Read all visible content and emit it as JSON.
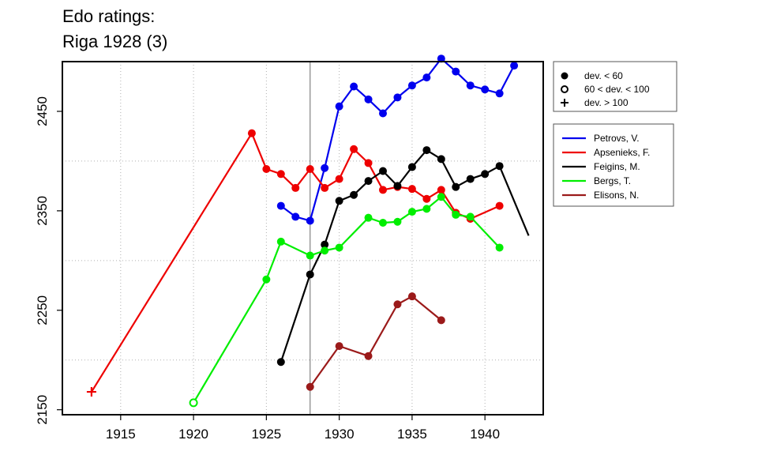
{
  "chart_data": {
    "type": "line",
    "title_lines": [
      "Edo ratings:",
      "Riga 1928 (3)"
    ],
    "xlabel": "",
    "ylabel": "",
    "xlim": [
      1911,
      1944
    ],
    "ylim": [
      2145,
      2500
    ],
    "x_ticks": [
      1915,
      1920,
      1925,
      1930,
      1935,
      1940
    ],
    "y_ticks": [
      2150,
      2250,
      2350,
      2450
    ],
    "grid": true,
    "grid_x": [
      1915,
      1920,
      1925,
      1930,
      1935,
      1940
    ],
    "grid_y": [
      2200,
      2300,
      2400,
      2500
    ],
    "reference_year": 1928,
    "marker_legend": [
      {
        "symbol": "filled-circle",
        "label": "dev. < 60"
      },
      {
        "symbol": "open-circle",
        "label": "60 < dev. < 100"
      },
      {
        "symbol": "plus",
        "label": "dev. > 100"
      }
    ],
    "series": [
      {
        "name": "Petrovs, V.",
        "color": "#0000ee",
        "points": [
          {
            "x": 1926,
            "y": 2355,
            "m": "filled-circle"
          },
          {
            "x": 1927,
            "y": 2344,
            "m": "filled-circle"
          },
          {
            "x": 1928,
            "y": 2340,
            "m": "filled-circle"
          },
          {
            "x": 1929,
            "y": 2393,
            "m": "filled-circle"
          },
          {
            "x": 1930,
            "y": 2455,
            "m": "filled-circle"
          },
          {
            "x": 1931,
            "y": 2475,
            "m": "filled-circle"
          },
          {
            "x": 1932,
            "y": 2462,
            "m": "filled-circle"
          },
          {
            "x": 1933,
            "y": 2448,
            "m": "filled-circle"
          },
          {
            "x": 1934,
            "y": 2464,
            "m": "filled-circle"
          },
          {
            "x": 1935,
            "y": 2476,
            "m": "filled-circle"
          },
          {
            "x": 1936,
            "y": 2484,
            "m": "filled-circle"
          },
          {
            "x": 1937,
            "y": 2503,
            "m": "filled-circle"
          },
          {
            "x": 1938,
            "y": 2490,
            "m": "filled-circle"
          },
          {
            "x": 1939,
            "y": 2476,
            "m": "filled-circle"
          },
          {
            "x": 1940,
            "y": 2472,
            "m": "filled-circle"
          },
          {
            "x": 1941,
            "y": 2468,
            "m": "filled-circle"
          },
          {
            "x": 1942,
            "y": 2496,
            "m": "filled-circle"
          }
        ]
      },
      {
        "name": "Apsenieks, F.",
        "color": "#ee0000",
        "points": [
          {
            "x": 1913,
            "y": 2168,
            "m": "plus"
          },
          {
            "x": 1924,
            "y": 2428,
            "m": "filled-circle"
          },
          {
            "x": 1925,
            "y": 2392,
            "m": "filled-circle"
          },
          {
            "x": 1926,
            "y": 2387,
            "m": "filled-circle"
          },
          {
            "x": 1927,
            "y": 2373,
            "m": "filled-circle"
          },
          {
            "x": 1928,
            "y": 2392,
            "m": "filled-circle"
          },
          {
            "x": 1929,
            "y": 2373,
            "m": "filled-circle"
          },
          {
            "x": 1930,
            "y": 2382,
            "m": "filled-circle"
          },
          {
            "x": 1931,
            "y": 2412,
            "m": "filled-circle"
          },
          {
            "x": 1932,
            "y": 2398,
            "m": "filled-circle"
          },
          {
            "x": 1933,
            "y": 2371,
            "m": "filled-circle"
          },
          {
            "x": 1934,
            "y": 2374,
            "m": "filled-circle"
          },
          {
            "x": 1935,
            "y": 2372,
            "m": "filled-circle"
          },
          {
            "x": 1936,
            "y": 2362,
            "m": "filled-circle"
          },
          {
            "x": 1937,
            "y": 2371,
            "m": "filled-circle"
          },
          {
            "x": 1938,
            "y": 2348,
            "m": "filled-circle"
          },
          {
            "x": 1939,
            "y": 2342,
            "m": "filled-circle"
          },
          {
            "x": 1941,
            "y": 2355,
            "m": "filled-circle"
          }
        ]
      },
      {
        "name": "Feigins, M.",
        "color": "#000000",
        "points": [
          {
            "x": 1926,
            "y": 2198,
            "m": "filled-circle"
          },
          {
            "x": 1928,
            "y": 2286,
            "m": "filled-circle"
          },
          {
            "x": 1929,
            "y": 2316,
            "m": "filled-circle"
          },
          {
            "x": 1930,
            "y": 2360,
            "m": "filled-circle"
          },
          {
            "x": 1931,
            "y": 2366,
            "m": "filled-circle"
          },
          {
            "x": 1932,
            "y": 2380,
            "m": "filled-circle"
          },
          {
            "x": 1933,
            "y": 2390,
            "m": "filled-circle"
          },
          {
            "x": 1934,
            "y": 2375,
            "m": "filled-circle"
          },
          {
            "x": 1935,
            "y": 2394,
            "m": "filled-circle"
          },
          {
            "x": 1936,
            "y": 2411,
            "m": "filled-circle"
          },
          {
            "x": 1937,
            "y": 2402,
            "m": "filled-circle"
          },
          {
            "x": 1938,
            "y": 2374,
            "m": "filled-circle"
          },
          {
            "x": 1939,
            "y": 2382,
            "m": "filled-circle"
          },
          {
            "x": 1940,
            "y": 2387,
            "m": "filled-circle"
          },
          {
            "x": 1941,
            "y": 2395,
            "m": "filled-circle"
          },
          {
            "x": 1943,
            "y": 2325,
            "m": "none"
          }
        ]
      },
      {
        "name": "Bergs, T.",
        "color": "#00ee00",
        "points": [
          {
            "x": 1920,
            "y": 2157,
            "m": "open-circle"
          },
          {
            "x": 1925,
            "y": 2281,
            "m": "filled-circle"
          },
          {
            "x": 1926,
            "y": 2319,
            "m": "filled-circle"
          },
          {
            "x": 1928,
            "y": 2305,
            "m": "filled-circle"
          },
          {
            "x": 1929,
            "y": 2310,
            "m": "filled-circle"
          },
          {
            "x": 1930,
            "y": 2313,
            "m": "filled-circle"
          },
          {
            "x": 1932,
            "y": 2343,
            "m": "filled-circle"
          },
          {
            "x": 1933,
            "y": 2338,
            "m": "filled-circle"
          },
          {
            "x": 1934,
            "y": 2339,
            "m": "filled-circle"
          },
          {
            "x": 1935,
            "y": 2349,
            "m": "filled-circle"
          },
          {
            "x": 1936,
            "y": 2352,
            "m": "filled-circle"
          },
          {
            "x": 1937,
            "y": 2364,
            "m": "filled-circle"
          },
          {
            "x": 1938,
            "y": 2346,
            "m": "filled-circle"
          },
          {
            "x": 1939,
            "y": 2344,
            "m": "filled-circle"
          },
          {
            "x": 1941,
            "y": 2313,
            "m": "filled-circle"
          }
        ]
      },
      {
        "name": "Elisons, N.",
        "color": "#9b1a1a",
        "points": [
          {
            "x": 1928,
            "y": 2173,
            "m": "filled-circle"
          },
          {
            "x": 1930,
            "y": 2214,
            "m": "filled-circle"
          },
          {
            "x": 1932,
            "y": 2204,
            "m": "filled-circle"
          },
          {
            "x": 1934,
            "y": 2256,
            "m": "filled-circle"
          },
          {
            "x": 1935,
            "y": 2264,
            "m": "filled-circle"
          },
          {
            "x": 1937,
            "y": 2240,
            "m": "filled-circle"
          }
        ]
      }
    ]
  }
}
